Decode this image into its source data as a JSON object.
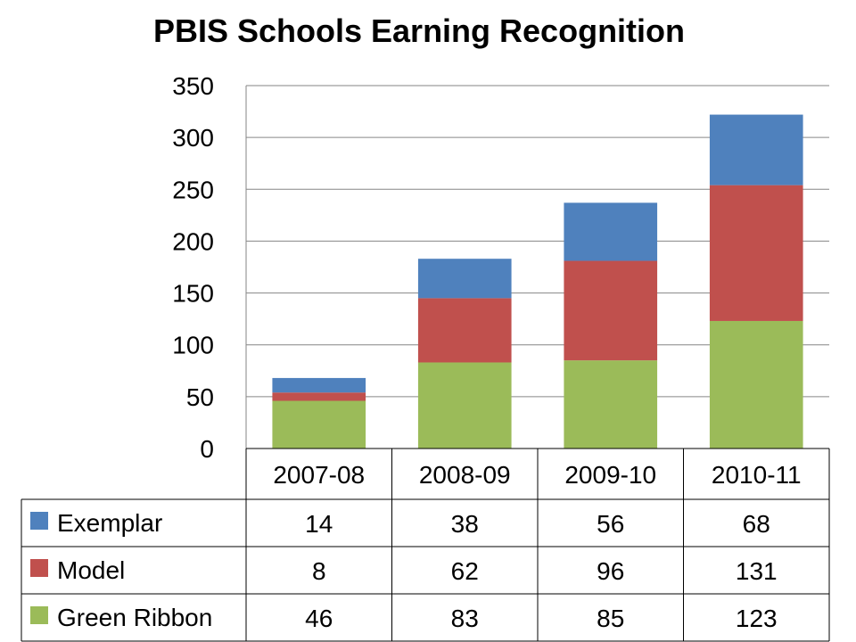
{
  "chart_data": {
    "type": "bar",
    "stacked": true,
    "title": "PBIS Schools Earning Recognition",
    "xlabel": "",
    "ylabel": "",
    "ylim": [
      0,
      350
    ],
    "yticks": [
      0,
      50,
      100,
      150,
      200,
      250,
      300,
      350
    ],
    "grid": true,
    "legend": "data-table",
    "categories": [
      "2007-08",
      "2008-09",
      "2009-10",
      "2010-11"
    ],
    "series": [
      {
        "name": "Green Ribbon",
        "color": "#9BBB59",
        "values": [
          46,
          83,
          85,
          123
        ]
      },
      {
        "name": "Model",
        "color": "#C0504D",
        "values": [
          8,
          62,
          96,
          131
        ]
      },
      {
        "name": "Exemplar",
        "color": "#4F81BD",
        "values": [
          14,
          38,
          56,
          68
        ]
      }
    ],
    "table_row_order": [
      "Exemplar",
      "Model",
      "Green Ribbon"
    ]
  }
}
